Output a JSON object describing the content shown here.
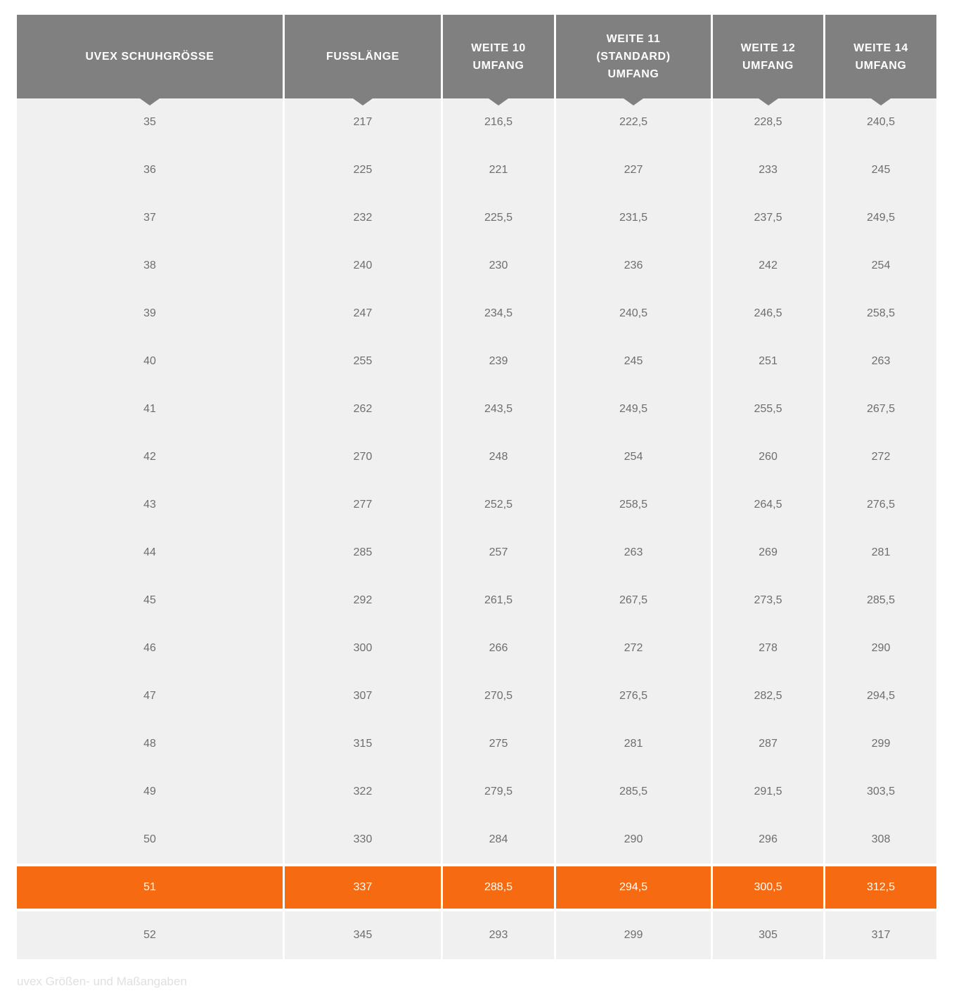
{
  "page": {
    "caption": "uvex Größen- und Maßangaben"
  },
  "theme": {
    "header_bg": "#808080",
    "header_text": "#ffffff",
    "row_bg": "#f0f0f0",
    "cell_text": "#6e6e6e",
    "highlight_bg": "#f66a12",
    "highlight_text": "#ffffff",
    "caption_text": "#e0e0e0",
    "page_bg": "#ffffff"
  },
  "table": {
    "columns": [
      {
        "id": "schuhgroesse",
        "label_lines": [
          "UVEX SCHUHGRÖSSE"
        ]
      },
      {
        "id": "fusslaenge",
        "label_lines": [
          "FUSSLÄNGE"
        ]
      },
      {
        "id": "weite-10",
        "label_lines": [
          "WEITE 10",
          "UMFANG"
        ]
      },
      {
        "id": "weite-11-standard",
        "label_lines": [
          "WEITE 11",
          "(STANDARD)",
          "UMFANG"
        ]
      },
      {
        "id": "weite-12",
        "label_lines": [
          "WEITE 12",
          "UMFANG"
        ]
      },
      {
        "id": "weite-14",
        "label_lines": [
          "WEITE 14",
          "UMFANG"
        ]
      }
    ],
    "rows": [
      {
        "highlight": false,
        "cells": [
          "35",
          "217",
          "216,5",
          "222,5",
          "228,5",
          "240,5"
        ]
      },
      {
        "highlight": false,
        "cells": [
          "36",
          "225",
          "221",
          "227",
          "233",
          "245"
        ]
      },
      {
        "highlight": false,
        "cells": [
          "37",
          "232",
          "225,5",
          "231,5",
          "237,5",
          "249,5"
        ]
      },
      {
        "highlight": false,
        "cells": [
          "38",
          "240",
          "230",
          "236",
          "242",
          "254"
        ]
      },
      {
        "highlight": false,
        "cells": [
          "39",
          "247",
          "234,5",
          "240,5",
          "246,5",
          "258,5"
        ]
      },
      {
        "highlight": false,
        "cells": [
          "40",
          "255",
          "239",
          "245",
          "251",
          "263"
        ]
      },
      {
        "highlight": false,
        "cells": [
          "41",
          "262",
          "243,5",
          "249,5",
          "255,5",
          "267,5"
        ]
      },
      {
        "highlight": false,
        "cells": [
          "42",
          "270",
          "248",
          "254",
          "260",
          "272"
        ]
      },
      {
        "highlight": false,
        "cells": [
          "43",
          "277",
          "252,5",
          "258,5",
          "264,5",
          "276,5"
        ]
      },
      {
        "highlight": false,
        "cells": [
          "44",
          "285",
          "257",
          "263",
          "269",
          "281"
        ]
      },
      {
        "highlight": false,
        "cells": [
          "45",
          "292",
          "261,5",
          "267,5",
          "273,5",
          "285,5"
        ]
      },
      {
        "highlight": false,
        "cells": [
          "46",
          "300",
          "266",
          "272",
          "278",
          "290"
        ]
      },
      {
        "highlight": false,
        "cells": [
          "47",
          "307",
          "270,5",
          "276,5",
          "282,5",
          "294,5"
        ]
      },
      {
        "highlight": false,
        "cells": [
          "48",
          "315",
          "275",
          "281",
          "287",
          "299"
        ]
      },
      {
        "highlight": false,
        "cells": [
          "49",
          "322",
          "279,5",
          "285,5",
          "291,5",
          "303,5"
        ]
      },
      {
        "highlight": false,
        "cells": [
          "50",
          "330",
          "284",
          "290",
          "296",
          "308"
        ]
      },
      {
        "highlight": true,
        "cells": [
          "51",
          "337",
          "288,5",
          "294,5",
          "300,5",
          "312,5"
        ]
      },
      {
        "highlight": false,
        "cells": [
          "52",
          "345",
          "293",
          "299",
          "305",
          "317"
        ]
      }
    ]
  }
}
